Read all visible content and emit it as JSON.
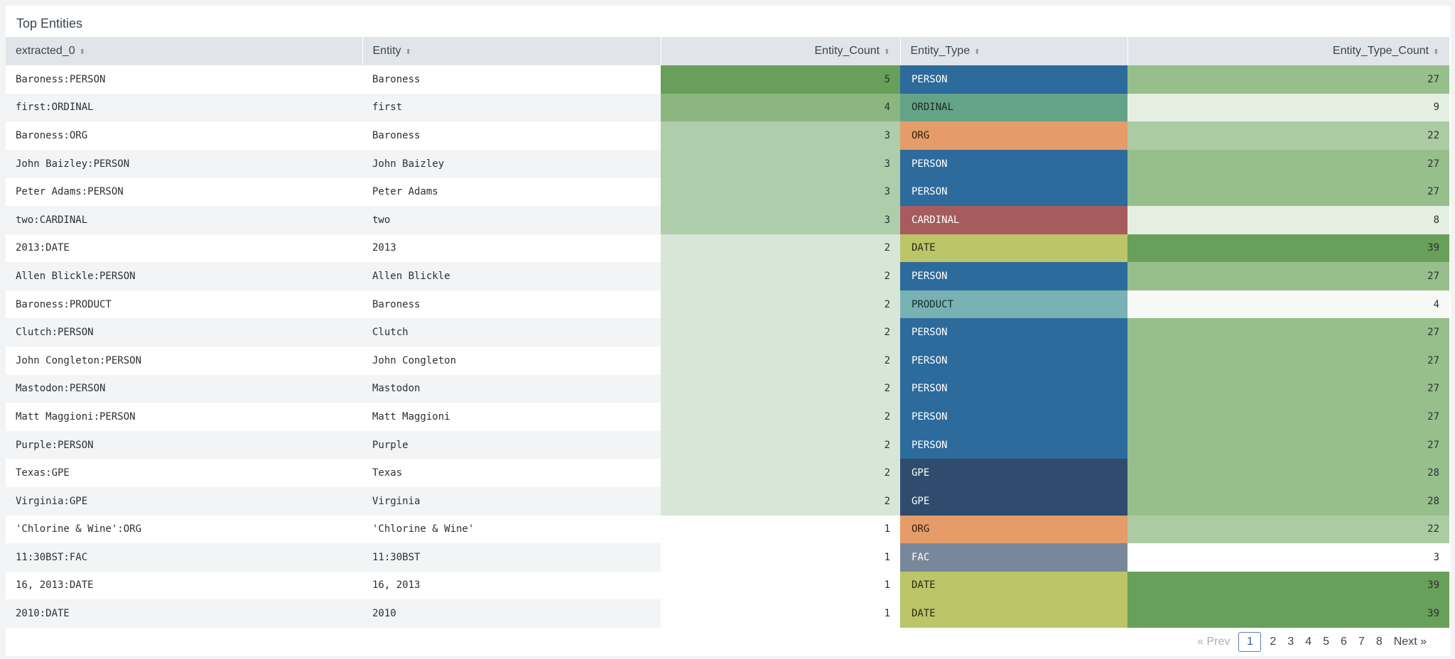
{
  "panel": {
    "title": "Top Entities"
  },
  "table": {
    "columns": [
      "extracted_0",
      "Entity",
      "Entity_Count",
      "Entity_Type",
      "Entity_Type_Count"
    ],
    "rows": [
      {
        "extracted": "Baroness:PERSON",
        "entity": "Baroness",
        "count": "5",
        "type": "PERSON",
        "type_count": "27"
      },
      {
        "extracted": "first:ORDINAL",
        "entity": "first",
        "count": "4",
        "type": "ORDINAL",
        "type_count": "9"
      },
      {
        "extracted": "Baroness:ORG",
        "entity": "Baroness",
        "count": "3",
        "type": "ORG",
        "type_count": "22"
      },
      {
        "extracted": "John Baizley:PERSON",
        "entity": "John Baizley",
        "count": "3",
        "type": "PERSON",
        "type_count": "27"
      },
      {
        "extracted": "Peter Adams:PERSON",
        "entity": "Peter Adams",
        "count": "3",
        "type": "PERSON",
        "type_count": "27"
      },
      {
        "extracted": "two:CARDINAL",
        "entity": "two",
        "count": "3",
        "type": "CARDINAL",
        "type_count": "8"
      },
      {
        "extracted": "2013:DATE",
        "entity": "2013",
        "count": "2",
        "type": "DATE",
        "type_count": "39"
      },
      {
        "extracted": "Allen Blickle:PERSON",
        "entity": "Allen Blickle",
        "count": "2",
        "type": "PERSON",
        "type_count": "27"
      },
      {
        "extracted": "Baroness:PRODUCT",
        "entity": "Baroness",
        "count": "2",
        "type": "PRODUCT",
        "type_count": "4"
      },
      {
        "extracted": "Clutch:PERSON",
        "entity": "Clutch",
        "count": "2",
        "type": "PERSON",
        "type_count": "27"
      },
      {
        "extracted": "John Congleton:PERSON",
        "entity": "John Congleton",
        "count": "2",
        "type": "PERSON",
        "type_count": "27"
      },
      {
        "extracted": "Mastodon:PERSON",
        "entity": "Mastodon",
        "count": "2",
        "type": "PERSON",
        "type_count": "27"
      },
      {
        "extracted": "Matt Maggioni:PERSON",
        "entity": "Matt Maggioni",
        "count": "2",
        "type": "PERSON",
        "type_count": "27"
      },
      {
        "extracted": "Purple:PERSON",
        "entity": "Purple",
        "count": "2",
        "type": "PERSON",
        "type_count": "27"
      },
      {
        "extracted": "Texas:GPE",
        "entity": "Texas",
        "count": "2",
        "type": "GPE",
        "type_count": "28"
      },
      {
        "extracted": "Virginia:GPE",
        "entity": "Virginia",
        "count": "2",
        "type": "GPE",
        "type_count": "28"
      },
      {
        "extracted": "'Chlorine & Wine':ORG",
        "entity": "'Chlorine & Wine'",
        "count": "1",
        "type": "ORG",
        "type_count": "22"
      },
      {
        "extracted": "11:30BST:FAC",
        "entity": "11:30BST",
        "count": "1",
        "type": "FAC",
        "type_count": "3"
      },
      {
        "extracted": "16, 2013:DATE",
        "entity": "16, 2013",
        "count": "1",
        "type": "DATE",
        "type_count": "39"
      },
      {
        "extracted": "2010:DATE",
        "entity": "2010",
        "count": "1",
        "type": "DATE",
        "type_count": "39"
      }
    ]
  },
  "colors": {
    "count_scale": {
      "5": "#689f5a",
      "4": "#8cb67f",
      "3": "#aecdab",
      "2": "#d8e6d7",
      "1": "#ffffff"
    },
    "type_count_scale": {
      "39": "#689f5a",
      "28": "#97bf8b",
      "27": "#97bf8b",
      "22": "#abcba3",
      "9": "#e4efe2",
      "8": "#e4efe2",
      "4": "#f7f9f6",
      "3": "#ffffff"
    },
    "entity_types": {
      "PERSON": "#2c6b9b",
      "ORDINAL": "#64a388",
      "ORG": "#e59c68",
      "CARDINAL": "#a65c5c",
      "DATE": "#bcc567",
      "PRODUCT": "#78b2b3",
      "GPE": "#2f4b6d",
      "FAC": "#78889a"
    },
    "entity_type_text": {
      "PERSON": "#ffffff",
      "ORDINAL": "#1e2a24",
      "ORG": "#2b1d12",
      "CARDINAL": "#ffffff",
      "DATE": "#262a10",
      "PRODUCT": "#15292a",
      "GPE": "#ffffff",
      "FAC": "#ffffff"
    }
  },
  "pagination": {
    "prev_label": "« Prev",
    "pages": [
      "1",
      "2",
      "3",
      "4",
      "5",
      "6",
      "7",
      "8"
    ],
    "current": "1",
    "next_label": "Next »"
  },
  "icons": {
    "sort": "sort-arrows-icon"
  }
}
